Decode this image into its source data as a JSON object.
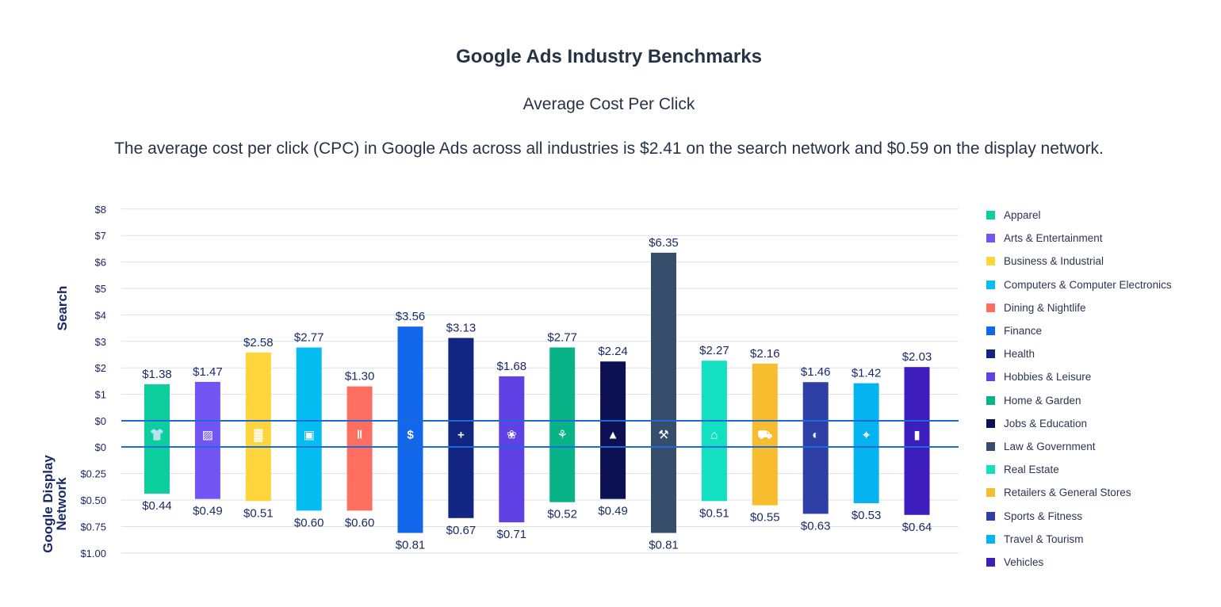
{
  "header": {
    "title": "Google Ads Industry Benchmarks",
    "subtitle": "Average Cost Per Click",
    "description": "The average cost per click (CPC) in Google Ads across all industries is $2.41 on the search network and $0.59 on the display network."
  },
  "chart_data": {
    "type": "bar",
    "title": "Google Ads Industry Benchmarks",
    "subtitle": "Average Cost Per Click",
    "axis_labels": {
      "top": "Search",
      "bottom": "Google Display Network"
    },
    "search_ticks": [
      "$0",
      "$1",
      "$2",
      "$3",
      "$4",
      "$5",
      "$6",
      "$7",
      "$8"
    ],
    "display_ticks": [
      "$0",
      "$0.25",
      "$0.50",
      "$0.75",
      "$1.00"
    ],
    "search_ylim": [
      0,
      8
    ],
    "display_ylim": [
      0,
      1.0
    ],
    "grid": true,
    "legend_position": "right",
    "categories": [
      {
        "name": "Apparel",
        "search": 1.38,
        "search_label": "$1.38",
        "display": 0.44,
        "display_label": "$0.44",
        "color": "#0dcf9d",
        "icon": "shirt-icon"
      },
      {
        "name": "Arts & Entertainment",
        "search": 1.47,
        "search_label": "$1.47",
        "display": 0.49,
        "display_label": "$0.49",
        "color": "#7255f2",
        "icon": "picture-icon"
      },
      {
        "name": "Business & Industrial",
        "search": 2.58,
        "search_label": "$2.58",
        "display": 0.51,
        "display_label": "$0.51",
        "color": "#fed53a",
        "icon": "factory-icon"
      },
      {
        "name": "Computers & Computer Electronics",
        "search": 2.77,
        "search_label": "$2.77",
        "display": 0.6,
        "display_label": "$0.60",
        "color": "#05bdf0",
        "icon": "laptop-icon"
      },
      {
        "name": "Dining & Nightlife",
        "search": 1.3,
        "search_label": "$1.30",
        "display": 0.6,
        "display_label": "$0.60",
        "color": "#ff6f61",
        "icon": "utensils-icon"
      },
      {
        "name": "Finance",
        "search": 3.56,
        "search_label": "$3.56",
        "display": 0.81,
        "display_label": "$0.81",
        "color": "#1367ea",
        "icon": "money-bag-icon"
      },
      {
        "name": "Health",
        "search": 3.13,
        "search_label": "$3.13",
        "display": 0.67,
        "display_label": "$0.67",
        "color": "#132582",
        "icon": "medical-kit-icon"
      },
      {
        "name": "Hobbies & Leisure",
        "search": 1.68,
        "search_label": "$1.68",
        "display": 0.71,
        "display_label": "$0.71",
        "color": "#5f41e6",
        "icon": "yarn-ball-icon"
      },
      {
        "name": "Home & Garden",
        "search": 2.77,
        "search_label": "$2.77",
        "display": 0.52,
        "display_label": "$0.52",
        "color": "#07b387",
        "icon": "flower-icon"
      },
      {
        "name": "Jobs & Education",
        "search": 2.24,
        "search_label": "$2.24",
        "display": 0.49,
        "display_label": "$0.49",
        "color": "#0b1152",
        "icon": "graduation-cap-icon"
      },
      {
        "name": "Law & Government",
        "search": 6.35,
        "search_label": "$6.35",
        "display": 0.81,
        "display_label": "$0.81",
        "color": "#364d6b",
        "icon": "gavel-icon"
      },
      {
        "name": "Real Estate",
        "search": 2.27,
        "search_label": "$2.27",
        "display": 0.51,
        "display_label": "$0.51",
        "color": "#13e0c1",
        "icon": "house-icon"
      },
      {
        "name": "Retailers & General Stores",
        "search": 2.16,
        "search_label": "$2.16",
        "display": 0.55,
        "display_label": "$0.55",
        "color": "#f8bd2f",
        "icon": "cart-icon"
      },
      {
        "name": "Sports & Fitness",
        "search": 1.46,
        "search_label": "$1.46",
        "display": 0.63,
        "display_label": "$0.63",
        "color": "#2e3fa6",
        "icon": "ball-icon"
      },
      {
        "name": "Travel & Tourism",
        "search": 1.42,
        "search_label": "$1.42",
        "display": 0.53,
        "display_label": "$0.53",
        "color": "#05b4ee",
        "icon": "map-pin-icon"
      },
      {
        "name": "Vehicles",
        "search": 2.03,
        "search_label": "$2.03",
        "display": 0.64,
        "display_label": "$0.64",
        "color": "#3e1dbd",
        "icon": "car-icon"
      }
    ]
  }
}
